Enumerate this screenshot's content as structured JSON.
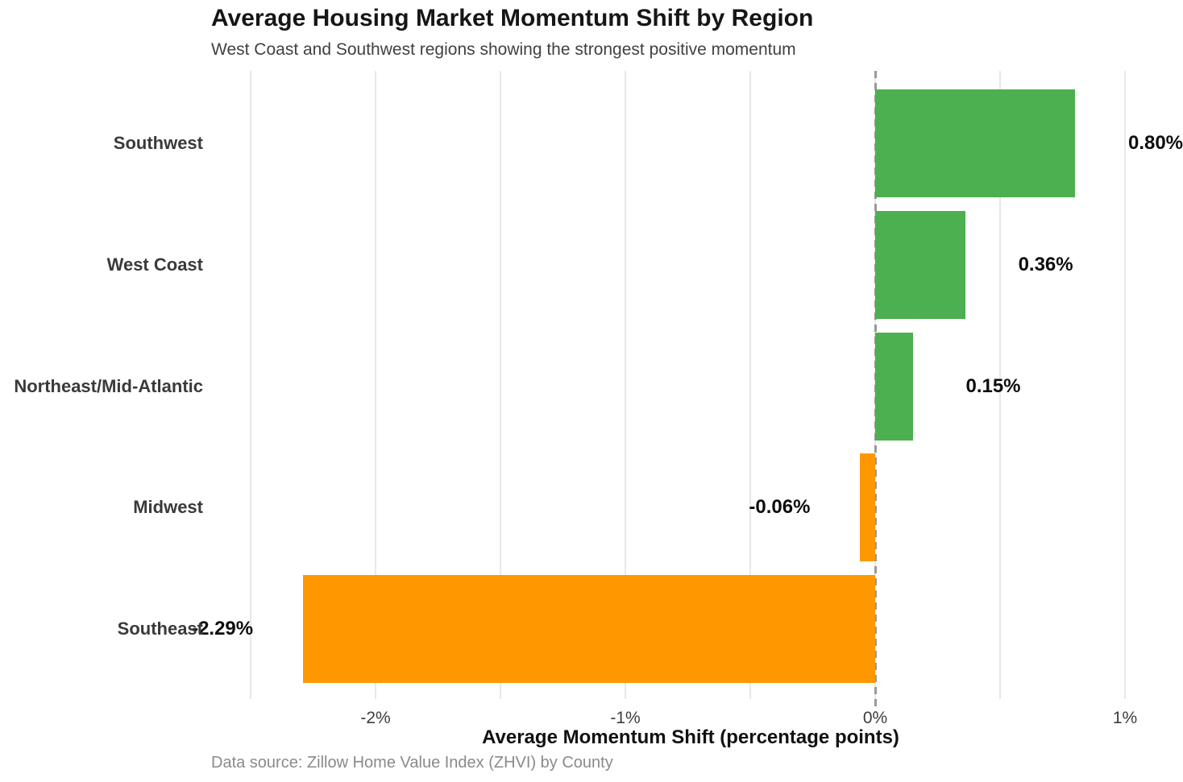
{
  "chart_data": {
    "type": "bar",
    "orientation": "horizontal",
    "title": "Average Housing Market Momentum Shift by Region",
    "subtitle": "West Coast and Southwest regions showing the strongest positive momentum",
    "xlabel": "Average Momentum Shift (percentage points)",
    "caption": "Data source: Zillow Home Value Index (ZHVI) by County",
    "categories": [
      "Southwest",
      "West Coast",
      "Northeast/Mid-Atlantic",
      "Midwest",
      "Southeast"
    ],
    "values": [
      0.8,
      0.36,
      0.15,
      -0.06,
      -2.29
    ],
    "value_labels": [
      "0.80%",
      "0.36%",
      "0.15%",
      "-0.06%",
      "-2.29%"
    ],
    "bar_colors": {
      "positive": "#4caf50",
      "negative": "#ff9800"
    },
    "xlim": [
      -2.67,
      1.19
    ],
    "xticks": [
      {
        "value": -2,
        "label": "-2%"
      },
      {
        "value": -1,
        "label": "-1%"
      },
      {
        "value": 0,
        "label": "0%"
      },
      {
        "value": 1,
        "label": "1%"
      }
    ],
    "gridlines": [
      -2.5,
      -2,
      -1.5,
      -1,
      -0.5,
      0,
      0.5,
      1
    ],
    "zero_line": {
      "style": "dashed",
      "color": "#999999"
    },
    "grid_color": "#e8e8e8",
    "legend": false
  }
}
